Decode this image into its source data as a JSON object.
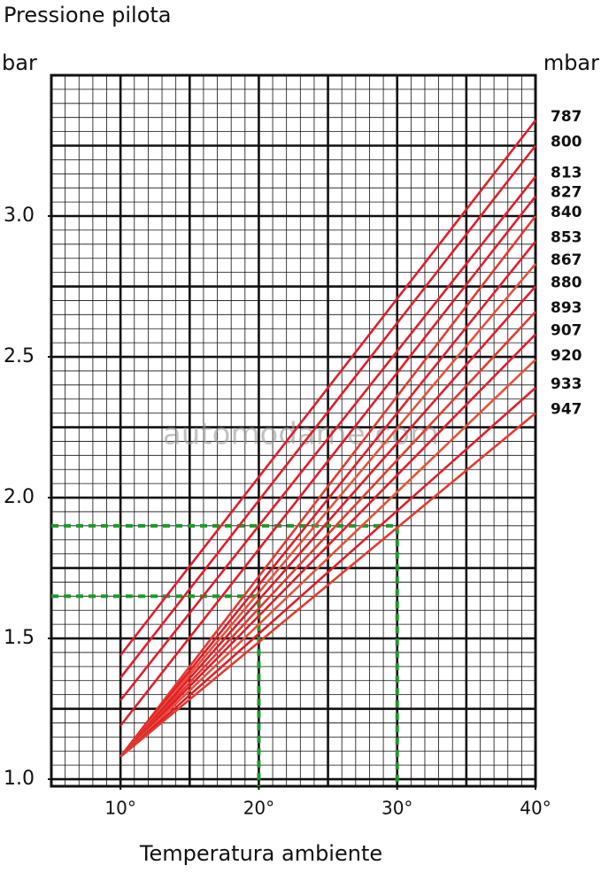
{
  "chart_data": {
    "type": "line",
    "title": "Pressione pilota",
    "y_label": "bar",
    "y2_label": "mbar",
    "x_label": "Temperatura ambiente",
    "watermark": "automodarne.com",
    "x": [
      10,
      40
    ],
    "series": [
      {
        "name": "787",
        "color": "#e01e2b",
        "values": [
          1.44,
          3.34
        ]
      },
      {
        "name": "800",
        "color": "#e01e2b",
        "values": [
          1.36,
          3.25
        ]
      },
      {
        "name": "813",
        "color": "#e01e2b",
        "values": [
          1.28,
          3.14
        ]
      },
      {
        "name": "827",
        "color": "#e01e2b",
        "values": [
          1.19,
          3.07
        ]
      },
      {
        "name": "840",
        "color": "#e33a30",
        "values": [
          1.08,
          3.0
        ]
      },
      {
        "name": "853",
        "color": "#e01e2b",
        "values": [
          1.08,
          2.91
        ]
      },
      {
        "name": "867",
        "color": "#e8503a",
        "values": [
          1.08,
          2.83
        ]
      },
      {
        "name": "880",
        "color": "#e01e2b",
        "values": [
          1.08,
          2.75
        ]
      },
      {
        "name": "893",
        "color": "#e33a30",
        "values": [
          1.08,
          2.66
        ]
      },
      {
        "name": "907",
        "color": "#e01e2b",
        "values": [
          1.08,
          2.58
        ]
      },
      {
        "name": "920",
        "color": "#e8503a",
        "values": [
          1.08,
          2.49
        ]
      },
      {
        "name": "933",
        "color": "#e01e2b",
        "values": [
          1.08,
          2.39
        ]
      },
      {
        "name": "947",
        "color": "#e33a30",
        "values": [
          1.08,
          2.3
        ]
      }
    ],
    "guides": [
      {
        "x": 30,
        "y": 1.9
      },
      {
        "x": 20,
        "y": 1.65
      }
    ],
    "guide_color": "#1a9a2a",
    "xlim": [
      5,
      40
    ],
    "ylim": [
      0.975,
      3.5
    ],
    "xticks": [
      {
        "value": 10,
        "label": "10°"
      },
      {
        "value": 20,
        "label": "20°"
      },
      {
        "value": 30,
        "label": "30°"
      },
      {
        "value": 40,
        "label": "40°"
      }
    ],
    "yticks": [
      {
        "value": 1,
        "label": "1.0"
      },
      1.5,
      {
        "value": 2,
        "label": "2.0"
      },
      2.5,
      {
        "value": 3,
        "label": "3.0"
      }
    ],
    "grid": true
  }
}
